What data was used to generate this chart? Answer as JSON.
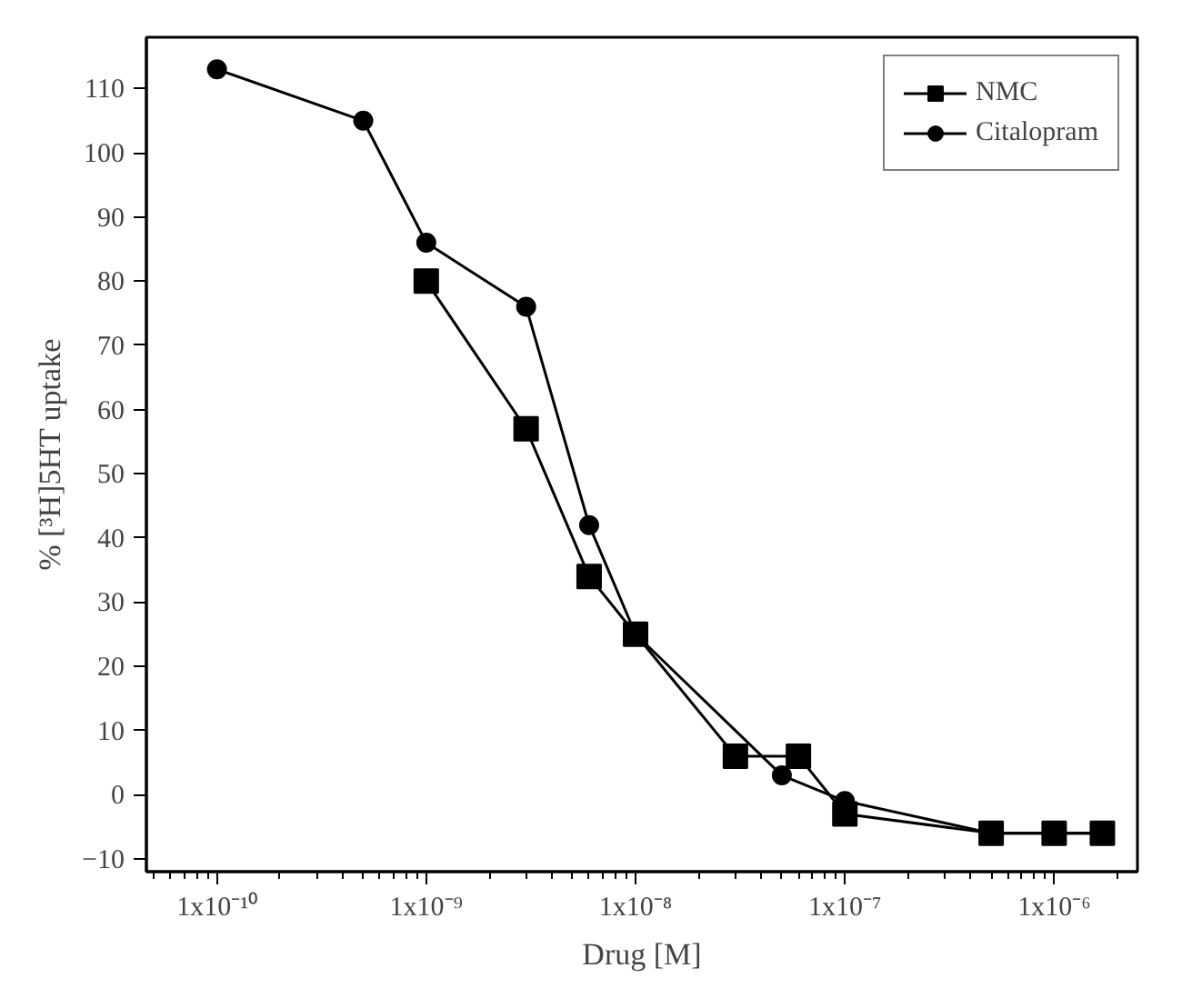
{
  "chart_data": {
    "type": "line",
    "xlabel": "Drug [M]",
    "ylabel": "% [³H]5HT uptake",
    "log": "x",
    "grid": false,
    "legend": "top right",
    "line_style": "solid",
    "xlim": [
      4.6e-11,
      2.5e-06
    ],
    "ylim": [
      -12,
      118
    ],
    "xticks": [
      {
        "value": 1e-10,
        "label": "1x10⁻¹⁰"
      },
      {
        "value": 1e-09,
        "label": "1x10⁻⁹"
      },
      {
        "value": 1e-08,
        "label": "1x10⁻⁸"
      },
      {
        "value": 1e-07,
        "label": "1x10⁻⁷"
      },
      {
        "value": 1e-06,
        "label": "1x10⁻⁶"
      }
    ],
    "yticks": [
      -10,
      0,
      10,
      20,
      30,
      40,
      50,
      60,
      70,
      80,
      90,
      100,
      110
    ],
    "series": [
      {
        "name": "NMC",
        "color": "#000000",
        "marker": "square",
        "x": [
          1e-09,
          3e-09,
          6e-09,
          1e-08,
          3e-08,
          6e-08,
          1e-07,
          5e-07,
          1e-06,
          1.7e-06
        ],
        "values": [
          80,
          57,
          34,
          25,
          6,
          6,
          -3,
          -6,
          -6,
          -6
        ]
      },
      {
        "name": "Citalopram",
        "color": "#000000",
        "marker": "circle",
        "x": [
          1e-10,
          5e-10,
          1e-09,
          3e-09,
          6e-09,
          1e-08,
          5e-08,
          1e-07,
          5e-07,
          1.7e-06
        ],
        "values": [
          113,
          105,
          86,
          76,
          42,
          25,
          3,
          -1,
          -6,
          -6
        ]
      }
    ]
  }
}
